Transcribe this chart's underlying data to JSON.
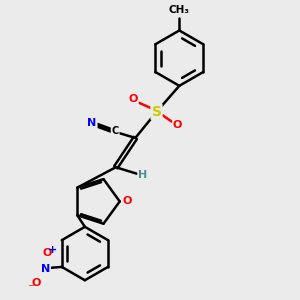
{
  "bg_color": "#ebebeb",
  "bond_color": "#000000",
  "bond_width": 1.8,
  "atom_colors": {
    "N": "#0000ff",
    "O": "#ff0000",
    "S": "#cccc00",
    "C": "#000000",
    "H": "#4a9090"
  },
  "font_size_atoms": 8,
  "font_size_small": 7
}
